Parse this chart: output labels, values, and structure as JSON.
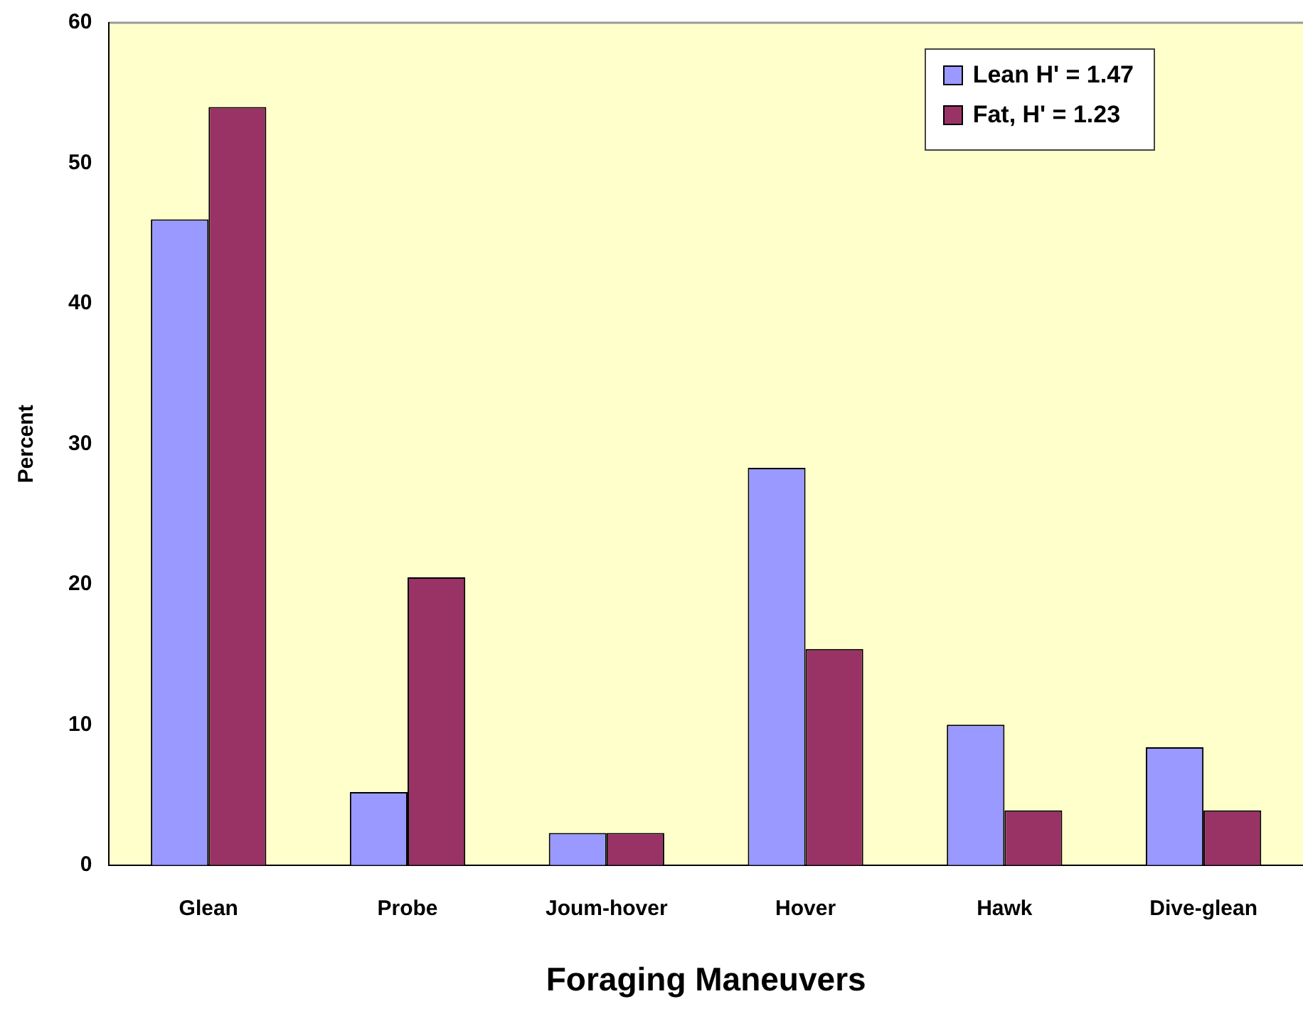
{
  "chart_data": {
    "type": "bar",
    "xlabel": "Foraging Maneuvers",
    "ylabel": "Percent",
    "categories": [
      "Glean",
      "Probe",
      "Joum-hover",
      "Hover",
      "Hawk",
      "Dive-glean"
    ],
    "series": [
      {
        "name": "Lean H' = 1.47",
        "color": "#9999ff",
        "values": [
          46,
          5.2,
          2.3,
          28.3,
          10,
          8.4
        ]
      },
      {
        "name": "Fat, H' = 1.23",
        "color": "#993366",
        "values": [
          54,
          20.5,
          2.3,
          15.4,
          3.9,
          3.9
        ]
      }
    ],
    "ylim": [
      0,
      60
    ],
    "yticks": [
      0,
      10,
      20,
      30,
      40,
      50,
      60
    ],
    "grid": false,
    "legend": "top right"
  }
}
